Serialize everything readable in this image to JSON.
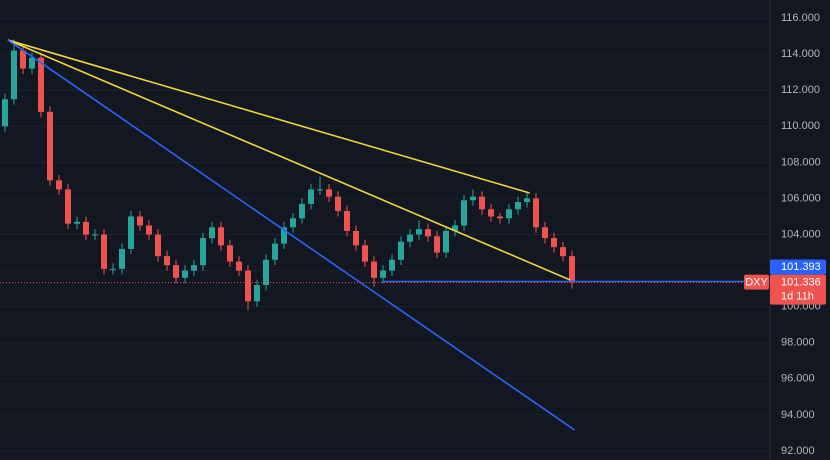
{
  "chart_data": {
    "type": "candlestick",
    "symbol": "DXY",
    "up_color": "#26a69a",
    "down_color": "#ef5350",
    "open": [
      110.0,
      111.5,
      114.2,
      113.2,
      113.8,
      110.8,
      107.0,
      106.5,
      104.6,
      104.7,
      104.0,
      104.0,
      102.1,
      102.1,
      103.2,
      105.0,
      104.5,
      104.0,
      102.8,
      102.3,
      101.6,
      102.0,
      102.3,
      103.8,
      104.4,
      103.4,
      102.5,
      102.0,
      100.3,
      101.2,
      102.6,
      103.5,
      104.4,
      104.9,
      105.7,
      106.5,
      106.5,
      106.1,
      105.3,
      104.2,
      103.4,
      102.5,
      101.6,
      102.0,
      102.6,
      103.6,
      104.0,
      104.3,
      103.9,
      103.0,
      104.2,
      104.5,
      105.9,
      106.1,
      105.4,
      105.0,
      104.9,
      105.4,
      105.8,
      106.0,
      104.4,
      103.8,
      103.3,
      102.8
    ],
    "high": [
      111.8,
      114.8,
      114.5,
      114.1,
      114.1,
      111.1,
      107.3,
      106.8,
      105.0,
      105.0,
      104.3,
      104.3,
      102.4,
      103.5,
      105.3,
      105.3,
      104.8,
      104.3,
      103.1,
      102.6,
      102.3,
      102.6,
      104.1,
      104.7,
      104.7,
      103.7,
      102.8,
      102.3,
      101.5,
      102.9,
      103.8,
      104.7,
      105.2,
      106.0,
      106.8,
      107.2,
      106.8,
      106.4,
      105.6,
      104.5,
      103.7,
      102.8,
      102.3,
      102.9,
      103.9,
      104.3,
      104.8,
      104.6,
      104.2,
      104.5,
      104.8,
      106.2,
      106.5,
      106.4,
      105.7,
      105.2,
      105.7,
      106.1,
      106.3,
      106.3,
      104.7,
      104.1,
      103.6,
      103.1
    ],
    "low": [
      109.7,
      111.2,
      112.9,
      112.9,
      110.5,
      106.7,
      106.2,
      104.3,
      104.3,
      103.7,
      103.7,
      101.8,
      101.8,
      101.8,
      102.9,
      104.2,
      103.7,
      102.5,
      102.0,
      101.3,
      101.3,
      101.7,
      102.0,
      103.5,
      103.1,
      102.2,
      101.7,
      99.8,
      100.0,
      100.9,
      102.3,
      103.2,
      104.1,
      104.6,
      105.4,
      106.2,
      105.8,
      105.0,
      103.9,
      103.1,
      102.2,
      101.1,
      101.3,
      101.7,
      102.3,
      103.3,
      103.7,
      103.6,
      102.7,
      102.7,
      103.9,
      104.2,
      105.6,
      105.1,
      104.7,
      104.6,
      104.6,
      105.1,
      105.5,
      104.1,
      103.5,
      103.0,
      102.5,
      101.0
    ],
    "close": [
      111.5,
      114.2,
      113.2,
      113.8,
      110.8,
      107.0,
      106.5,
      104.6,
      104.7,
      104.0,
      104.0,
      102.1,
      102.1,
      103.2,
      105.0,
      104.5,
      104.0,
      102.8,
      102.3,
      101.6,
      102.0,
      102.3,
      103.8,
      104.4,
      103.4,
      102.5,
      102.0,
      100.3,
      101.2,
      102.6,
      103.5,
      104.4,
      104.9,
      105.7,
      106.5,
      106.5,
      106.1,
      105.3,
      104.2,
      103.4,
      102.5,
      101.6,
      102.0,
      102.6,
      103.6,
      104.0,
      104.3,
      103.9,
      103.0,
      104.2,
      104.5,
      105.9,
      106.1,
      105.4,
      105.0,
      104.9,
      105.4,
      105.8,
      106.0,
      104.4,
      103.8,
      103.3,
      102.8,
      101.336
    ],
    "ylim": [
      91.5,
      117
    ],
    "yticks": [
      {
        "value": 116,
        "label": "116.000"
      },
      {
        "value": 114,
        "label": "114.000"
      },
      {
        "value": 112,
        "label": "112.000"
      },
      {
        "value": 110,
        "label": "110.000"
      },
      {
        "value": 108,
        "label": "108.000"
      },
      {
        "value": 106,
        "label": "106.000"
      },
      {
        "value": 104,
        "label": "104.000"
      },
      {
        "value": 102,
        "label": "102.000"
      },
      {
        "value": 100,
        "label": "100.000"
      },
      {
        "value": 98,
        "label": "98.000"
      },
      {
        "value": 96,
        "label": "96.000"
      },
      {
        "value": 94,
        "label": "94.000"
      },
      {
        "value": 92,
        "label": "92.000"
      }
    ],
    "grid": true,
    "trendlines": [
      {
        "color": "#f2d43d",
        "x": [
          0.33,
          58.3
        ],
        "values": [
          114.78,
          106.3
        ]
      },
      {
        "color": "#f2d43d",
        "x": [
          0.33,
          62.8
        ],
        "values": [
          114.78,
          101.48
        ]
      },
      {
        "color": "#2962ff",
        "x": [
          0.33,
          63.3
        ],
        "values": [
          114.78,
          93.16
        ]
      }
    ],
    "horizontal_line": {
      "color": "#2962ff",
      "x": 42,
      "value": 101.393
    },
    "last_price": 101.336,
    "countdown": "1d 11h"
  }
}
